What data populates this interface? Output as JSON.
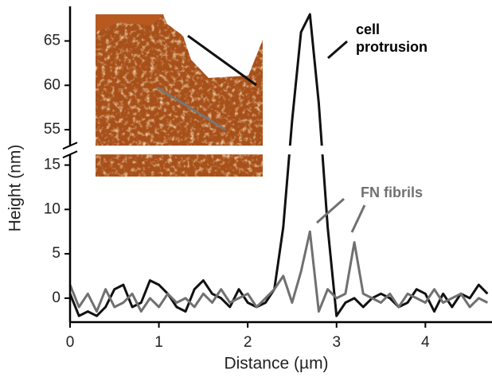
{
  "chart_data": {
    "type": "line",
    "xlabel": "Distance (µm)",
    "ylabel": "Height (nm)",
    "x": [
      0,
      0.1,
      0.2,
      0.3,
      0.4,
      0.5,
      0.6,
      0.7,
      0.8,
      0.9,
      1,
      1.1,
      1.2,
      1.3,
      1.4,
      1.5,
      1.6,
      1.7,
      1.8,
      1.9,
      2,
      2.1,
      2.2,
      2.3,
      2.4,
      2.5,
      2.6,
      2.7,
      2.8,
      2.9,
      3,
      3.1,
      3.2,
      3.3,
      3.4,
      3.5,
      3.6,
      3.7,
      3.8,
      3.9,
      4,
      4.1,
      4.2,
      4.3,
      4.4,
      4.5,
      4.6,
      4.7
    ],
    "series": [
      {
        "name": "cell protrusion",
        "color": "#111111",
        "values": [
          0.5,
          -2,
          -1.5,
          -2,
          -1,
          1,
          1.5,
          -1,
          -0.5,
          2,
          1.5,
          0.5,
          -1,
          -1.5,
          1,
          2,
          0.5,
          0,
          -1,
          1,
          -0.5,
          -1,
          -0.5,
          1,
          8,
          56,
          66,
          68,
          58,
          8,
          -2,
          -0.5,
          0,
          -1,
          0,
          0.5,
          0,
          -1,
          -0.5,
          1,
          0.5,
          -1.5,
          0.5,
          -1,
          0.5,
          0,
          1.5,
          0.5
        ]
      },
      {
        "name": "FN fibrils",
        "color": "#707070",
        "values": [
          1.5,
          -1,
          0.5,
          -1.5,
          1,
          -1,
          -0.5,
          0.5,
          -1.5,
          0,
          -1,
          0.5,
          -0.5,
          0,
          -1,
          0.5,
          -0.5,
          1,
          -0.5,
          0,
          0.5,
          -1,
          0,
          1,
          2.5,
          -0.5,
          3,
          7.5,
          -1.5,
          1,
          0,
          0.5,
          6.3,
          0.5,
          0,
          -0.5,
          0.5,
          -1,
          0.5,
          0,
          -0.5,
          1,
          -0.5,
          0,
          0.5,
          -1,
          0,
          -0.5
        ]
      }
    ],
    "xlim": [
      0,
      4.75
    ],
    "xticks": [
      0,
      1,
      2,
      3,
      4
    ],
    "ylim": [
      -2.7,
      68.9
    ],
    "ybreak": [
      16.2,
      53.2
    ],
    "yticks": [
      0,
      5,
      10,
      15,
      55,
      60,
      65
    ]
  }
}
